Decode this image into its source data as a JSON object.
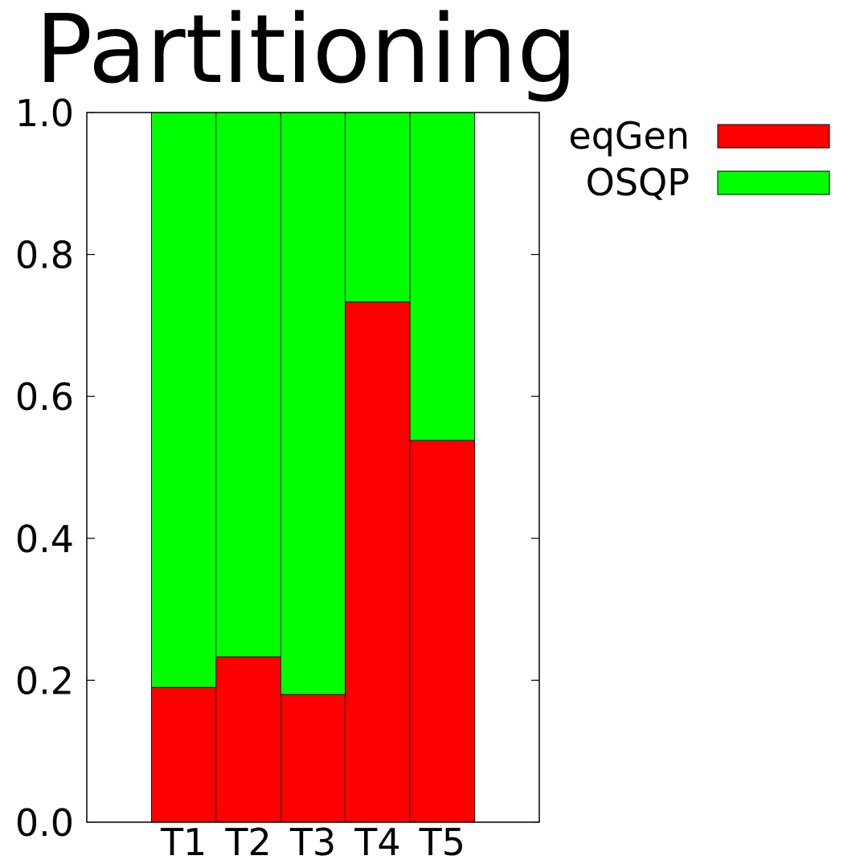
{
  "chart_data": {
    "type": "bar",
    "stacked": true,
    "normalized": true,
    "title": "Partitioning",
    "xlabel": "",
    "ylabel": "",
    "categories": [
      "T1",
      "T2",
      "T3",
      "T4",
      "T5"
    ],
    "series": [
      {
        "name": "eqGen",
        "color": "#ff0000",
        "values": [
          0.19,
          0.233,
          0.18,
          0.733,
          0.538
        ]
      },
      {
        "name": "OSQP",
        "color": "#00ff00",
        "values": [
          0.81,
          0.767,
          0.82,
          0.267,
          0.462
        ]
      }
    ],
    "ylim": [
      0,
      1.0
    ],
    "yticks": [
      "0.0",
      "0.2",
      "0.4",
      "0.6",
      "0.8",
      "1.0"
    ],
    "xlim": [
      -1.5,
      5.5
    ],
    "grid": false,
    "legend_position": "top-right-outside"
  }
}
